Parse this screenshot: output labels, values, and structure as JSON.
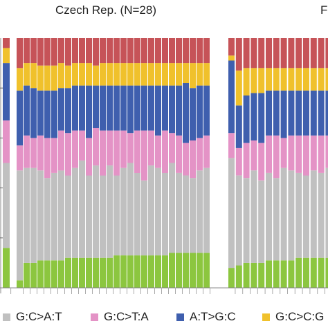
{
  "chart_data": {
    "type": "bar",
    "stacked": "percent",
    "ylim": [
      0,
      1
    ],
    "colors": {
      "G:C>A:T": "#c0c0c0",
      "G:C>T:A": "#e493c6",
      "A:T>G:C": "#3f5fae",
      "G:C>C:G": "#f0c12c",
      "A:T>T:A": "#c65358",
      "A:T>C:G": "#8cc63f"
    },
    "series_order_bottom_to_top": [
      "A:T>C:G",
      "G:C>A:T",
      "G:C>T:A",
      "A:T>G:C",
      "G:C>C:G",
      "A:T>T:A"
    ],
    "panels": [
      {
        "title": "",
        "partial": true,
        "bars": [
          {
            "A:T>C:G": 0.16,
            "G:C>A:T": 0.34,
            "G:C>T:A": 0.17,
            "A:T>G:C": 0.23,
            "G:C>C:G": 0.06,
            "A:T>T:A": 0.04
          }
        ]
      },
      {
        "title": "Czech Rep. (N=28)",
        "bars": [
          {
            "A:T>C:G": 0.03,
            "G:C>A:T": 0.44,
            "G:C>T:A": 0.1,
            "A:T>G:C": 0.22,
            "G:C>C:G": 0.09,
            "A:T>T:A": 0.12
          },
          {
            "A:T>C:G": 0.1,
            "G:C>A:T": 0.38,
            "G:C>T:A": 0.13,
            "A:T>G:C": 0.2,
            "G:C>C:G": 0.09,
            "A:T>T:A": 0.1
          },
          {
            "A:T>C:G": 0.1,
            "G:C>A:T": 0.38,
            "G:C>T:A": 0.12,
            "A:T>G:C": 0.2,
            "G:C>C:G": 0.1,
            "A:T>T:A": 0.1
          },
          {
            "A:T>C:G": 0.11,
            "G:C>A:T": 0.36,
            "G:C>T:A": 0.14,
            "A:T>G:C": 0.18,
            "G:C>C:G": 0.1,
            "A:T>T:A": 0.11
          },
          {
            "A:T>C:G": 0.11,
            "G:C>A:T": 0.33,
            "G:C>T:A": 0.16,
            "A:T>G:C": 0.19,
            "G:C>C:G": 0.1,
            "A:T>T:A": 0.11
          },
          {
            "A:T>C:G": 0.11,
            "G:C>A:T": 0.35,
            "G:C>T:A": 0.14,
            "A:T>G:C": 0.19,
            "G:C>C:G": 0.1,
            "A:T>T:A": 0.11
          },
          {
            "A:T>C:G": 0.11,
            "G:C>A:T": 0.36,
            "G:C>T:A": 0.16,
            "A:T>G:C": 0.17,
            "G:C>C:G": 0.1,
            "A:T>T:A": 0.1
          },
          {
            "A:T>C:G": 0.12,
            "G:C>A:T": 0.33,
            "G:C>T:A": 0.17,
            "A:T>G:C": 0.18,
            "G:C>C:G": 0.09,
            "A:T>T:A": 0.11
          },
          {
            "A:T>C:G": 0.12,
            "G:C>A:T": 0.36,
            "G:C>T:A": 0.15,
            "A:T>G:C": 0.18,
            "G:C>C:G": 0.09,
            "A:T>T:A": 0.1
          },
          {
            "A:T>C:G": 0.12,
            "G:C>A:T": 0.39,
            "G:C>T:A": 0.12,
            "A:T>G:C": 0.18,
            "G:C>C:G": 0.09,
            "A:T>T:A": 0.1
          },
          {
            "A:T>C:G": 0.12,
            "G:C>A:T": 0.33,
            "G:C>T:A": 0.15,
            "A:T>G:C": 0.21,
            "G:C>C:G": 0.09,
            "A:T>T:A": 0.1
          },
          {
            "A:T>C:G": 0.12,
            "G:C>A:T": 0.37,
            "G:C>T:A": 0.15,
            "A:T>G:C": 0.17,
            "G:C>C:G": 0.08,
            "A:T>T:A": 0.11
          },
          {
            "A:T>C:G": 0.12,
            "G:C>A:T": 0.33,
            "G:C>T:A": 0.18,
            "A:T>G:C": 0.18,
            "G:C>C:G": 0.09,
            "A:T>T:A": 0.1
          },
          {
            "A:T>C:G": 0.12,
            "G:C>A:T": 0.37,
            "G:C>T:A": 0.14,
            "A:T>G:C": 0.18,
            "G:C>C:G": 0.09,
            "A:T>T:A": 0.1
          },
          {
            "A:T>C:G": 0.13,
            "G:C>A:T": 0.32,
            "G:C>T:A": 0.18,
            "A:T>G:C": 0.18,
            "G:C>C:G": 0.09,
            "A:T>T:A": 0.1
          },
          {
            "A:T>C:G": 0.13,
            "G:C>A:T": 0.35,
            "G:C>T:A": 0.15,
            "A:T>G:C": 0.18,
            "G:C>C:G": 0.09,
            "A:T>T:A": 0.1
          },
          {
            "A:T>C:G": 0.13,
            "G:C>A:T": 0.37,
            "G:C>T:A": 0.12,
            "A:T>G:C": 0.19,
            "G:C>C:G": 0.09,
            "A:T>T:A": 0.1
          },
          {
            "A:T>C:G": 0.13,
            "G:C>A:T": 0.33,
            "G:C>T:A": 0.17,
            "A:T>G:C": 0.18,
            "G:C>C:G": 0.09,
            "A:T>T:A": 0.1
          },
          {
            "A:T>C:G": 0.13,
            "G:C>A:T": 0.3,
            "G:C>T:A": 0.2,
            "A:T>G:C": 0.18,
            "G:C>C:G": 0.09,
            "A:T>T:A": 0.1
          },
          {
            "A:T>C:G": 0.13,
            "G:C>A:T": 0.36,
            "G:C>T:A": 0.14,
            "A:T>G:C": 0.18,
            "G:C>C:G": 0.09,
            "A:T>T:A": 0.1
          },
          {
            "A:T>C:G": 0.13,
            "G:C>A:T": 0.35,
            "G:C>T:A": 0.13,
            "A:T>G:C": 0.2,
            "G:C>C:G": 0.09,
            "A:T>T:A": 0.1
          },
          {
            "A:T>C:G": 0.13,
            "G:C>A:T": 0.33,
            "G:C>T:A": 0.17,
            "A:T>G:C": 0.18,
            "G:C>C:G": 0.09,
            "A:T>T:A": 0.1
          },
          {
            "A:T>C:G": 0.14,
            "G:C>A:T": 0.36,
            "G:C>T:A": 0.12,
            "A:T>G:C": 0.19,
            "G:C>C:G": 0.09,
            "A:T>T:A": 0.1
          },
          {
            "A:T>C:G": 0.14,
            "G:C>A:T": 0.32,
            "G:C>T:A": 0.15,
            "A:T>G:C": 0.2,
            "G:C>C:G": 0.09,
            "A:T>T:A": 0.1
          },
          {
            "A:T>C:G": 0.14,
            "G:C>A:T": 0.31,
            "G:C>T:A": 0.13,
            "A:T>G:C": 0.24,
            "G:C>C:G": 0.08,
            "A:T>T:A": 0.1
          },
          {
            "A:T>C:G": 0.14,
            "G:C>A:T": 0.3,
            "G:C>T:A": 0.15,
            "A:T>G:C": 0.21,
            "G:C>C:G": 0.1,
            "A:T>T:A": 0.1
          },
          {
            "A:T>C:G": 0.14,
            "G:C>A:T": 0.33,
            "G:C>T:A": 0.13,
            "A:T>G:C": 0.21,
            "G:C>C:G": 0.09,
            "A:T>T:A": 0.1
          },
          {
            "A:T>C:G": 0.14,
            "G:C>A:T": 0.34,
            "G:C>T:A": 0.13,
            "A:T>G:C": 0.2,
            "G:C>C:G": 0.09,
            "A:T>T:A": 0.1
          }
        ]
      },
      {
        "title": "F",
        "partial": true,
        "bars": [
          {
            "A:T>C:G": 0.08,
            "G:C>A:T": 0.44,
            "G:C>T:A": 0.1,
            "A:T>G:C": 0.29,
            "G:C>C:G": 0.02,
            "A:T>T:A": 0.07
          },
          {
            "A:T>C:G": 0.09,
            "G:C>A:T": 0.36,
            "G:C>T:A": 0.11,
            "A:T>G:C": 0.17,
            "G:C>C:G": 0.14,
            "A:T>T:A": 0.13
          },
          {
            "A:T>C:G": 0.1,
            "G:C>A:T": 0.34,
            "G:C>T:A": 0.14,
            "A:T>G:C": 0.19,
            "G:C>C:G": 0.11,
            "A:T>T:A": 0.12
          },
          {
            "A:T>C:G": 0.1,
            "G:C>A:T": 0.37,
            "G:C>T:A": 0.12,
            "A:T>G:C": 0.19,
            "G:C>C:G": 0.1,
            "A:T>T:A": 0.12
          },
          {
            "A:T>C:G": 0.1,
            "G:C>A:T": 0.33,
            "G:C>T:A": 0.15,
            "A:T>G:C": 0.2,
            "G:C>C:G": 0.1,
            "A:T>T:A": 0.12
          },
          {
            "A:T>C:G": 0.11,
            "G:C>A:T": 0.35,
            "G:C>T:A": 0.15,
            "A:T>G:C": 0.18,
            "G:C>C:G": 0.09,
            "A:T>T:A": 0.12
          },
          {
            "A:T>C:G": 0.11,
            "G:C>A:T": 0.33,
            "G:C>T:A": 0.17,
            "A:T>G:C": 0.18,
            "G:C>C:G": 0.09,
            "A:T>T:A": 0.12
          },
          {
            "A:T>C:G": 0.11,
            "G:C>A:T": 0.37,
            "G:C>T:A": 0.12,
            "A:T>G:C": 0.19,
            "G:C>C:G": 0.09,
            "A:T>T:A": 0.12
          },
          {
            "A:T>C:G": 0.11,
            "G:C>A:T": 0.36,
            "G:C>T:A": 0.14,
            "A:T>G:C": 0.18,
            "G:C>C:G": 0.09,
            "A:T>T:A": 0.12
          },
          {
            "A:T>C:G": 0.12,
            "G:C>A:T": 0.34,
            "G:C>T:A": 0.15,
            "A:T>G:C": 0.18,
            "G:C>C:G": 0.09,
            "A:T>T:A": 0.12
          },
          {
            "A:T>C:G": 0.12,
            "G:C>A:T": 0.33,
            "G:C>T:A": 0.16,
            "A:T>G:C": 0.18,
            "G:C>C:G": 0.09,
            "A:T>T:A": 0.12
          },
          {
            "A:T>C:G": 0.12,
            "G:C>A:T": 0.35,
            "G:C>T:A": 0.14,
            "A:T>G:C": 0.18,
            "G:C>C:G": 0.09,
            "A:T>T:A": 0.12
          },
          {
            "A:T>C:G": 0.12,
            "G:C>A:T": 0.34,
            "G:C>T:A": 0.15,
            "A:T>G:C": 0.18,
            "G:C>C:G": 0.09,
            "A:T>T:A": 0.12
          },
          {
            "A:T>C:G": 0.12,
            "G:C>A:T": 0.36,
            "G:C>T:A": 0.13,
            "A:T>G:C": 0.18,
            "G:C>C:G": 0.09,
            "A:T>T:A": 0.12
          }
        ]
      }
    ],
    "legend": [
      {
        "key": "G:C>A:T",
        "label": "G:C>A:T"
      },
      {
        "key": "G:C>T:A",
        "label": "G:C>T:A"
      },
      {
        "key": "A:T>G:C",
        "label": "A:T>G:C"
      },
      {
        "key": "G:C>C:G",
        "label": "G:C>C:G"
      }
    ]
  }
}
